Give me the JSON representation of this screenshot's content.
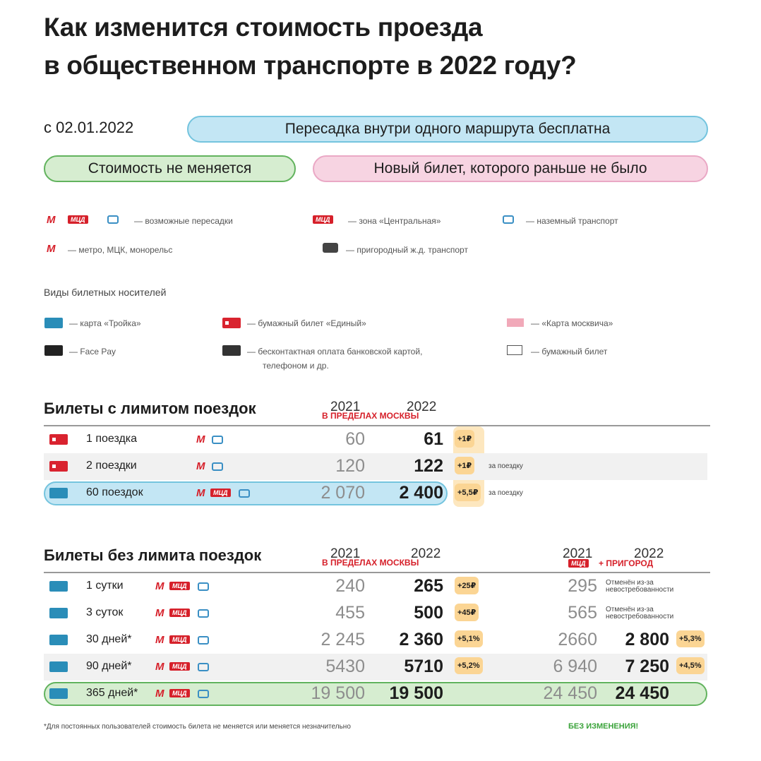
{
  "title": [
    "Как изменится стоимость проезда",
    "в общественном транспорте в 2022 году?"
  ],
  "date": "с 02.01.2022",
  "badges": {
    "transfer": "Пересадка внутри одного маршрута бесплатна",
    "unchanged": "Стоимость не меняется",
    "new": "Новый билет, которого раньше не было"
  },
  "icons": {
    "metro": "М",
    "mcd": "МЦД"
  },
  "legend": {
    "transfers": "— возможные пересадки",
    "central": "— зона «Центральная»",
    "ground": "— наземный транспорт",
    "metro": "— метро, МЦК, монорельс",
    "suburban": "— пригородный ж.д. транспорт"
  },
  "carriers": {
    "heading": "Виды билетных носителей",
    "troika": "— карта «Тройка»",
    "edinyi": "— бумажный билет «Единый»",
    "muscovite": "— «Карта москвича»",
    "facepay": "— Face Pay",
    "contactless": [
      "— бесконтактная оплата банковской картой,",
      "телефоном и др."
    ],
    "paper": "— бумажный билет"
  },
  "limited": {
    "title": "Билеты с лимитом поездок",
    "col_2021": "2021",
    "col_2022": "2022",
    "scope": "В ПРЕДЕЛАХ МОСКВЫ",
    "rows": [
      {
        "name": "1 поездка",
        "carrier": "paper",
        "mcd": false,
        "style": "plain",
        "price_2021": "60",
        "price_2022": "61",
        "change": "+1₽"
      },
      {
        "name": "2 поездки",
        "carrier": "paper",
        "mcd": false,
        "style": "gray",
        "price_2021": "120",
        "price_2022": "122",
        "change": "+1₽",
        "note": "за поездку"
      },
      {
        "name": "60 поездок",
        "carrier": "troika",
        "mcd": true,
        "style": "blue",
        "price_2021": "2 070",
        "price_2022": "2 400",
        "change": "+5,5₽",
        "note": "за поездку"
      }
    ]
  },
  "unlimited": {
    "title": "Билеты без лимита поездок",
    "col_2021": "2021",
    "col_2022": "2022",
    "scope": "В ПРЕДЕЛАХ МОСКВЫ",
    "suburb": "+ ПРИГОРОД",
    "rows": [
      {
        "name": "1 сутки",
        "carrier": "troika",
        "mcd": true,
        "style": "plain",
        "price_2021": "240",
        "price_2022": "265",
        "change": "+25₽",
        "mcd_2021": "295",
        "mcd_note": "Отменён из-за невостребованности"
      },
      {
        "name": "3 суток",
        "carrier": "troika",
        "mcd": true,
        "style": "plain",
        "price_2021": "455",
        "price_2022": "500",
        "change": "+45₽",
        "mcd_2021": "565",
        "mcd_note": "Отменён из-за невостребованности"
      },
      {
        "name": "30 дней*",
        "carrier": "troika",
        "mcd": true,
        "style": "plain",
        "price_2021": "2 245",
        "price_2022": "2 360",
        "change": "+5,1%",
        "mcd_2021": "2660",
        "mcd_2022": "2 800",
        "mcd_change": "+5,3%"
      },
      {
        "name": "90 дней*",
        "carrier": "troika",
        "mcd": true,
        "style": "gray",
        "price_2021": "5430",
        "price_2022": "5710",
        "change": "+5,2%",
        "mcd_2021": "6 940",
        "mcd_2022": "7 250",
        "mcd_change": "+4,5%"
      },
      {
        "name": "365 дней*",
        "carrier": "troika",
        "mcd": true,
        "style": "green",
        "price_2021": "19 500",
        "price_2022": "19 500",
        "mcd_2021": "24 450",
        "mcd_2022": "24 450"
      }
    ]
  },
  "footnote": "*Для постоянных пользователей стоимость билета не меняется или меняется незначительно",
  "no_change": "БЕЗ ИЗМЕНЕНИЯ!"
}
